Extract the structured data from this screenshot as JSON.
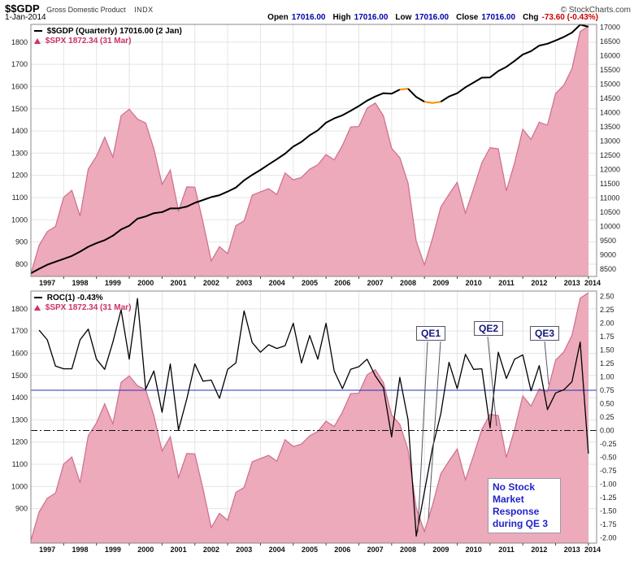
{
  "header": {
    "symbol": "$$GDP",
    "name": "Gross Domestic Product",
    "exchange": "INDX",
    "copyright": "© StockCharts.com",
    "date": "1-Jan-2014",
    "quote": {
      "open_label": "Open",
      "open_value": "17016.00",
      "high_label": "High",
      "high_value": "17016.00",
      "low_label": "Low",
      "low_value": "17016.00",
      "close_label": "Close",
      "close_value": "17016.00",
      "chg_label": "Chg",
      "chg_value": "-73.60 (-0.43%)"
    }
  },
  "panel1_legend": {
    "gdp": "$$GDP (Quarterly) 17016.00 (2 Jan)",
    "spx": "$SPX 1872.34 (31 Mar)"
  },
  "panel2_legend": {
    "roc": "ROC(1) -0.43%",
    "spx": "$SPX 1872.34 (31 Mar)"
  },
  "annotations": {
    "qe1": "QE1",
    "qe2": "QE2",
    "qe3": "QE3",
    "note": "No Stock Market Response during QE 3"
  },
  "theme": {
    "area_fill": "#ecaabb",
    "area_stroke": "#d06c8c",
    "gdp_line": "#000000",
    "gdp_highlight": "#ff8800",
    "roc_line": "#000000",
    "hline_blue": "#2233bb",
    "hline_black": "#111111",
    "annotation_text": "#2222cc",
    "grid": "#e4e4e4",
    "frame": "#888888"
  },
  "chart_data": [
    {
      "type": "area+line",
      "title": "$$GDP quarterly vs $SPX",
      "x_domain": [
        1997,
        2014.25
      ],
      "x_tick_years": [
        "1997",
        "1998",
        "1999",
        "2000",
        "2001",
        "2002",
        "2003",
        "2004",
        "2005",
        "2006",
        "2007",
        "2008",
        "2009",
        "2010",
        "2011",
        "2012",
        "2013",
        "2014"
      ],
      "left_axis": {
        "label": "$SPX",
        "min": 745,
        "max": 1880,
        "tick_values": [
          1800,
          1700,
          1600,
          1500,
          1400,
          1300,
          1200,
          1100,
          1000,
          900,
          800
        ],
        "tick_labels": [
          "1800",
          "1700",
          "1600",
          "1500",
          "1400",
          "1300",
          "1200",
          "1100",
          "1000",
          "900",
          "800"
        ]
      },
      "right_axis": {
        "label": "$$GDP",
        "min": 8250,
        "max": 17100,
        "tick_values": [
          17000,
          16500,
          16000,
          15500,
          15000,
          14500,
          14000,
          13500,
          13000,
          12500,
          12000,
          11500,
          11000,
          10500,
          10000,
          9500,
          9000,
          8500
        ],
        "tick_labels": [
          "17000",
          "16500",
          "16000",
          "15500",
          "15000",
          "14500",
          "14000",
          "13500",
          "13000",
          "12500",
          "12000",
          "11500",
          "11000",
          "10500",
          "10000",
          "9500",
          "9000",
          "8500"
        ]
      },
      "series": [
        {
          "name": "$SPX",
          "kind": "area",
          "axis": "left",
          "values": [
            757,
            885,
            947,
            970,
            1101,
            1133,
            1017,
            1229,
            1286,
            1372,
            1282,
            1469,
            1498,
            1454,
            1436,
            1320,
            1160,
            1224,
            1040,
            1148,
            1147,
            989,
            815,
            879,
            848,
            974,
            995,
            1111,
            1126,
            1140,
            1114,
            1211,
            1180,
            1191,
            1228,
            1248,
            1294,
            1270,
            1335,
            1418,
            1420,
            1503,
            1526,
            1468,
            1322,
            1280,
            1166,
            903,
            797,
            919,
            1057,
            1115,
            1169,
            1030,
            1141,
            1257,
            1325,
            1320,
            1131,
            1257,
            1408,
            1362,
            1440,
            1426,
            1569,
            1606,
            1681,
            1848,
            1872.34
          ]
        },
        {
          "name": "$$GDP (Quarterly)",
          "kind": "line",
          "axis": "right",
          "width": 2,
          "highlight_segments": [
            [
              45,
              46
            ],
            [
              48,
              50
            ]
          ],
          "values": [
            8362,
            8518,
            8662,
            8766,
            8867,
            8969,
            9121,
            9293,
            9417,
            9524,
            9681,
            9899,
            10031,
            10278,
            10357,
            10472,
            10508,
            10638,
            10639,
            10701,
            10834,
            10934,
            11037,
            11103,
            11230,
            11371,
            11625,
            11816,
            11989,
            12181,
            12367,
            12562,
            12813,
            12975,
            13205,
            13381,
            13648,
            13800,
            13908,
            14066,
            14233,
            14422,
            14569,
            14685,
            14668,
            14813,
            14843,
            14550,
            14384,
            14340,
            14384,
            14567,
            14681,
            14889,
            15058,
            15231,
            15238,
            15461,
            15611,
            15818,
            16041,
            16160,
            16356,
            16420,
            16535,
            16661,
            16812,
            17089.6,
            17016
          ]
        }
      ]
    },
    {
      "type": "area+line",
      "title": "ROC(1) of $$GDP vs $SPX",
      "x_domain": [
        1997,
        2014.25
      ],
      "x_tick_years": [
        "1997",
        "1998",
        "1999",
        "2000",
        "2001",
        "2002",
        "2003",
        "2004",
        "2005",
        "2006",
        "2007",
        "2008",
        "2009",
        "2010",
        "2011",
        "2012",
        "2013",
        "2014"
      ],
      "left_axis": {
        "label": "$SPX",
        "min": 745,
        "max": 1880,
        "tick_values": [
          1800,
          1700,
          1600,
          1500,
          1400,
          1300,
          1200,
          1100,
          1000,
          900
        ],
        "tick_labels": [
          "1800",
          "1700",
          "1600",
          "1500",
          "1400",
          "1300",
          "1200",
          "1100",
          "1000",
          "900"
        ]
      },
      "right_axis": {
        "label": "ROC(1) %",
        "min": -2.1,
        "max": 2.6,
        "tick_values": [
          2.5,
          2.25,
          2.0,
          1.75,
          1.5,
          1.25,
          1.0,
          0.75,
          0.5,
          0.25,
          0.0,
          -0.25,
          -0.5,
          -0.75,
          -1.0,
          -1.25,
          -1.5,
          -1.75,
          -2.0
        ],
        "tick_labels": [
          "2.50",
          "2.25",
          "2.00",
          "1.75",
          "1.50",
          "1.25",
          "1.00",
          "0.75",
          "0.50",
          "0.25",
          "0.00",
          "-0.25",
          "-0.50",
          "-0.75",
          "-1.00",
          "-1.25",
          "-1.50",
          "-1.75",
          "-2.00"
        ]
      },
      "hlines": [
        {
          "value": 0.75,
          "style": "solid",
          "color": "#2233bb"
        },
        {
          "value": 0.0,
          "style": "dashdot",
          "color": "#111111"
        }
      ],
      "series": [
        {
          "name": "$SPX",
          "kind": "area",
          "axis": "left",
          "values": [
            757,
            885,
            947,
            970,
            1101,
            1133,
            1017,
            1229,
            1286,
            1372,
            1282,
            1469,
            1498,
            1454,
            1436,
            1320,
            1160,
            1224,
            1040,
            1148,
            1147,
            989,
            815,
            879,
            848,
            974,
            995,
            1111,
            1126,
            1140,
            1114,
            1211,
            1180,
            1191,
            1228,
            1248,
            1294,
            1270,
            1335,
            1418,
            1420,
            1503,
            1526,
            1468,
            1322,
            1280,
            1166,
            903,
            797,
            919,
            1057,
            1115,
            1169,
            1030,
            1141,
            1257,
            1325,
            1320,
            1131,
            1257,
            1408,
            1362,
            1440,
            1426,
            1569,
            1606,
            1681,
            1848,
            1872.34
          ]
        },
        {
          "name": "ROC(1)",
          "kind": "line",
          "axis": "right",
          "width": 1.3,
          "values": [
            null,
            1.87,
            1.69,
            1.2,
            1.15,
            1.15,
            1.69,
            1.89,
            1.33,
            1.14,
            1.65,
            2.25,
            1.33,
            2.46,
            0.77,
            1.11,
            0.34,
            1.24,
            0.01,
            0.58,
            1.24,
            0.92,
            0.94,
            0.6,
            1.14,
            1.26,
            2.23,
            1.64,
            1.46,
            1.6,
            1.53,
            1.58,
            2.0,
            1.26,
            1.77,
            1.33,
            2.0,
            1.11,
            0.78,
            1.14,
            1.19,
            1.33,
            1.02,
            0.8,
            -0.12,
            0.99,
            0.2,
            -1.97,
            -1.14,
            -0.31,
            0.31,
            1.27,
            0.78,
            1.42,
            1.14,
            1.15,
            0.05,
            1.46,
            0.97,
            1.33,
            1.41,
            0.74,
            1.21,
            0.39,
            0.7,
            0.76,
            0.91,
            1.65,
            -0.43
          ]
        }
      ]
    }
  ]
}
